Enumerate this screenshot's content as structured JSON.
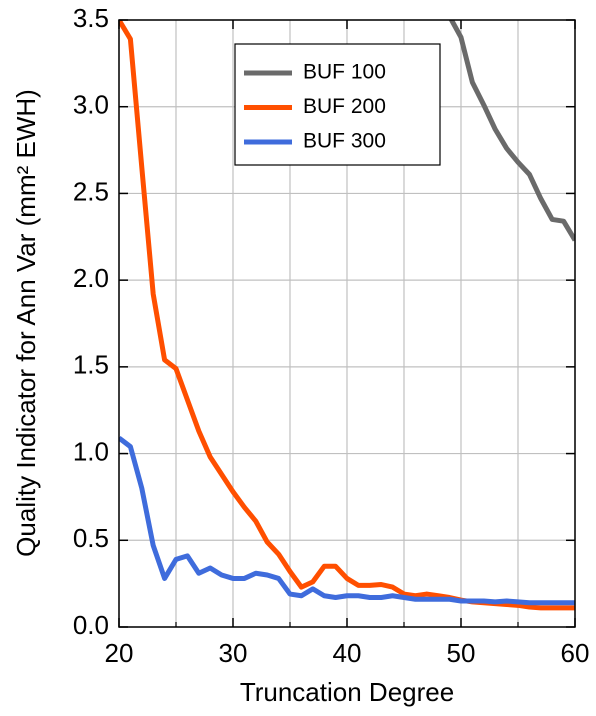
{
  "chart_data": {
    "type": "line",
    "x_label": "Truncation Degree",
    "y_label": "Quality Indicator for Ann Var (mm² EWH)",
    "xlim": [
      20,
      60
    ],
    "xticks": [
      20,
      30,
      40,
      50,
      60
    ],
    "x_grid": [
      25,
      35,
      45,
      55
    ],
    "ylim": [
      0,
      3.5
    ],
    "yticks": [
      {
        "value": 0,
        "label": "0.0"
      },
      0.5,
      {
        "value": 1,
        "label": "1.0"
      },
      1.5,
      {
        "value": 2,
        "label": "2.0"
      },
      2.5,
      {
        "value": 3,
        "label": "3.0"
      },
      3.5
    ],
    "grid": true,
    "legend": "upper center",
    "series": [
      {
        "name": "BUF 100",
        "color": "#6a6a6a",
        "x": [
          49,
          50,
          51,
          52,
          53,
          54,
          55,
          56,
          57,
          58,
          59,
          60
        ],
        "values": [
          3.52,
          3.4,
          3.14,
          3.01,
          2.87,
          2.76,
          2.68,
          2.61,
          2.47,
          2.35,
          2.34,
          2.23
        ]
      },
      {
        "name": "BUF 200",
        "color": "#ff4f00",
        "x": [
          20,
          21,
          22,
          23,
          24,
          25,
          26,
          27,
          28,
          29,
          30,
          31,
          32,
          33,
          34,
          35,
          36,
          37,
          38,
          39,
          40,
          41,
          42,
          43,
          44,
          45,
          46,
          47,
          48,
          49,
          50,
          51,
          52,
          53,
          54,
          55,
          56,
          57,
          58,
          59,
          60
        ],
        "values": [
          3.5,
          3.39,
          2.65,
          1.92,
          1.54,
          1.49,
          1.31,
          1.13,
          0.98,
          0.88,
          0.78,
          0.69,
          0.61,
          0.49,
          0.42,
          0.32,
          0.23,
          0.26,
          0.35,
          0.35,
          0.28,
          0.24,
          0.24,
          0.245,
          0.23,
          0.19,
          0.18,
          0.19,
          0.18,
          0.17,
          0.155,
          0.145,
          0.14,
          0.135,
          0.13,
          0.125,
          0.115,
          0.11,
          0.11,
          0.11,
          0.11
        ]
      },
      {
        "name": "BUF 300",
        "color": "#3f6cdc",
        "x": [
          20,
          21,
          22,
          23,
          24,
          25,
          26,
          27,
          28,
          29,
          30,
          31,
          32,
          33,
          34,
          35,
          36,
          37,
          38,
          39,
          40,
          41,
          42,
          43,
          44,
          45,
          46,
          47,
          48,
          49,
          50,
          51,
          52,
          53,
          54,
          55,
          56,
          57,
          58,
          59,
          60
        ],
        "values": [
          1.09,
          1.04,
          0.8,
          0.47,
          0.28,
          0.39,
          0.41,
          0.31,
          0.34,
          0.3,
          0.28,
          0.28,
          0.31,
          0.3,
          0.28,
          0.19,
          0.18,
          0.22,
          0.18,
          0.17,
          0.18,
          0.18,
          0.17,
          0.17,
          0.18,
          0.17,
          0.16,
          0.16,
          0.16,
          0.16,
          0.15,
          0.15,
          0.15,
          0.145,
          0.15,
          0.145,
          0.14,
          0.14,
          0.14,
          0.14,
          0.14
        ]
      }
    ]
  }
}
